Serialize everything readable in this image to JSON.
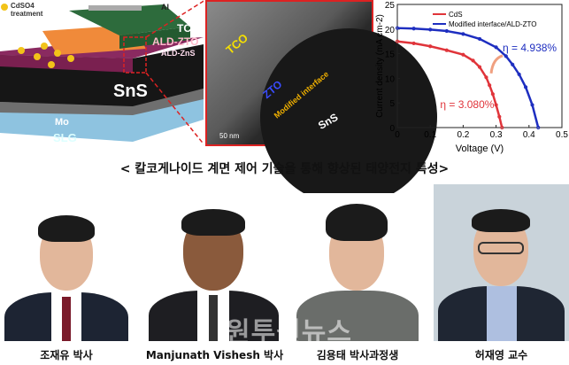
{
  "schematic": {
    "legend": "CdSO4 treatment",
    "layers": {
      "al": "Al",
      "tco": "TCO",
      "zto": "ALD-ZTO",
      "zns": "ALD-ZnS",
      "sns": "SnS",
      "mo": "Mo",
      "slg": "SLG"
    }
  },
  "tem": {
    "labels": {
      "tco": "TCO",
      "zto": "ZTO",
      "interface": "Modified interface",
      "sns": "SnS"
    },
    "scale_bar": "50 nm"
  },
  "chart_data": {
    "type": "line",
    "xlabel": "Voltage (V)",
    "ylabel": "Current density (mA cm-2)",
    "xlim": [
      0,
      0.5
    ],
    "ylim": [
      0,
      25
    ],
    "xticks": [
      "0",
      "0.1",
      "0.2",
      "0.3",
      "0.4",
      "0.5"
    ],
    "yticks": [
      "0",
      "5",
      "10",
      "15",
      "20",
      "25"
    ],
    "legend": "top-right",
    "series": [
      {
        "name": "CdS",
        "color": "#e0343a",
        "annotation": "η = 3.080%",
        "x": [
          0,
          0.05,
          0.1,
          0.15,
          0.2,
          0.23,
          0.25,
          0.27,
          0.28,
          0.29,
          0.3,
          0.31,
          0.318
        ],
        "y": [
          17.5,
          17.1,
          16.5,
          15.7,
          14.8,
          13.6,
          12.3,
          10.2,
          8.6,
          6.8,
          4.6,
          2.2,
          0
        ]
      },
      {
        "name": "Modified interface/ALD-ZTO",
        "color": "#1e2ec0",
        "annotation": "η = 4.938%",
        "x": [
          0,
          0.05,
          0.1,
          0.15,
          0.2,
          0.25,
          0.3,
          0.33,
          0.35,
          0.37,
          0.39,
          0.41,
          0.428
        ],
        "y": [
          20.2,
          20.1,
          19.9,
          19.6,
          19.0,
          18.0,
          16.3,
          14.5,
          12.8,
          10.8,
          8.2,
          4.6,
          0
        ]
      }
    ]
  },
  "caption": "< 칼코게나이드 계면 제어 기술을 통해 향상된 태양전지 특성>",
  "people": [
    {
      "name": "조재유 박사"
    },
    {
      "name": "Manjunath Vishesh 박사"
    },
    {
      "name": "김용태 박사과정생"
    },
    {
      "name": "허재영 교수"
    }
  ],
  "watermark": "원투원뉴스"
}
